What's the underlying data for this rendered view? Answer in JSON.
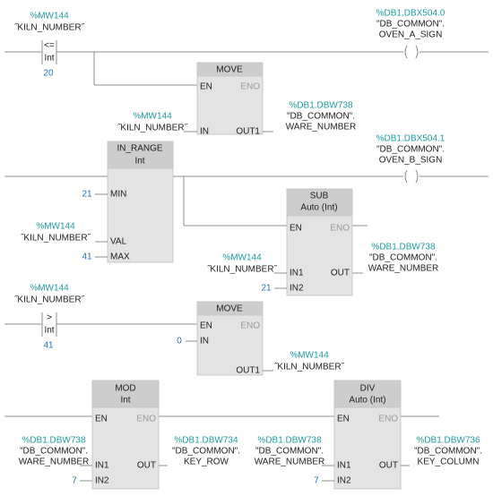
{
  "networks": [
    {
      "contact": {
        "address": "%MW144",
        "operand": "˝KILN_NUMBER˝",
        "operator": "<=",
        "type": "Int",
        "value": 20
      },
      "coil": {
        "address": "%DB1.DBX504.0",
        "db": "\"DB_COMMON\".",
        "tag": "OVEN_A_SIGN"
      },
      "box": {
        "title": "MOVE",
        "en": "EN",
        "eno": "ENO",
        "in": "IN",
        "out": "OUT1"
      },
      "box_in": {
        "address": "%MW144",
        "operand": "˝KILN_NUMBER˝"
      },
      "box_out": {
        "address": "%DB1.DBW738",
        "db": "\"DB_COMMON\".",
        "tag": "WARE_NUMBER"
      }
    },
    {
      "range_box": {
        "title": "IN_RANGE",
        "subtitle": "Int",
        "min": "MIN",
        "val": "VAL",
        "max": "MAX"
      },
      "min": 21,
      "val": {
        "address": "%MW144",
        "operand": "˝KILN_NUMBER˝"
      },
      "max": 41,
      "coil": {
        "address": "%DB1.DBX504.1",
        "db": "\"DB_COMMON\".",
        "tag": "OVEN_B_SIGN"
      },
      "box": {
        "title": "SUB",
        "subtitle": "Auto (Int)",
        "en": "EN",
        "eno": "ENO",
        "in1": "IN1",
        "in2": "IN2",
        "out": "OUT"
      },
      "in1": {
        "address": "%MW144",
        "operand": "˝KILN_NUMBER˝"
      },
      "in2": 21,
      "out": {
        "address": "%DB1.DBW738",
        "db": "\"DB_COMMON\".",
        "tag": "WARE_NUMBER"
      }
    },
    {
      "contact": {
        "address": "%MW144",
        "operand": "˝KILN_NUMBER˝",
        "operator": ">",
        "type": "Int",
        "value": 41
      },
      "box": {
        "title": "MOVE",
        "en": "EN",
        "eno": "ENO",
        "in": "IN",
        "out": "OUT1"
      },
      "box_in": 0,
      "box_out": {
        "address": "%MW144",
        "operand": "˝KILN_NUMBER˝"
      }
    },
    {
      "boxes": [
        {
          "title": "MOD",
          "subtitle": "Int",
          "en": "EN",
          "eno": "ENO",
          "in1": "IN1",
          "in2": "IN2",
          "out": "OUT",
          "in1_operand": {
            "address": "%DB1.DBW738",
            "db": "\"DB_COMMON\".",
            "tag": "WARE_NUMBER"
          },
          "in2_value": 7,
          "out_operand": {
            "address": "%DB1.DBW734",
            "db": "\"DB_COMMON\".",
            "tag": "KEY_ROW"
          }
        },
        {
          "title": "DIV",
          "subtitle": "Auto (Int)",
          "en": "EN",
          "eno": "ENO",
          "in1": "IN1",
          "in2": "IN2",
          "out": "OUT",
          "in1_operand": {
            "address": "%DB1.DBW738",
            "db": "\"DB_COMMON\".",
            "tag": "WARE_NUMBER"
          },
          "in2_value": 7,
          "out_operand": {
            "address": "%DB1.DBW736",
            "db": "\"DB_COMMON\".",
            "tag": "KEY_COLUMN"
          }
        }
      ]
    }
  ]
}
